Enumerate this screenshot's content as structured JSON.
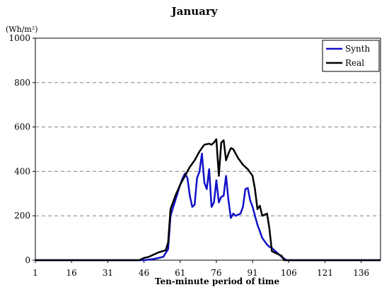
{
  "chart_data": {
    "type": "line",
    "title": "January",
    "ylabel": "(Wh/m²)",
    "xlabel": "Ten-minute period of time",
    "xlim": [
      1,
      144
    ],
    "ylim": [
      0,
      1000
    ],
    "xticks": [
      1,
      16,
      31,
      46,
      61,
      76,
      91,
      106,
      121,
      136
    ],
    "yticks": [
      0,
      200,
      400,
      600,
      800,
      1000
    ],
    "grid": "horizontal-dashed",
    "legend": "top-right",
    "series": [
      {
        "name": "Synth",
        "color": "#1010c8",
        "x": [
          1,
          46,
          50,
          54,
          56,
          57,
          59,
          61,
          62,
          63,
          64,
          65,
          66,
          67,
          68,
          69,
          70,
          71,
          72,
          73,
          74,
          75,
          76,
          77,
          78,
          79,
          80,
          81,
          82,
          83,
          84,
          85,
          86,
          87,
          88,
          89,
          90,
          91,
          92,
          93,
          94,
          95,
          96,
          97,
          98,
          99,
          100,
          101,
          102,
          103,
          104,
          105,
          144
        ],
        "y": [
          0,
          0,
          5,
          15,
          50,
          200,
          270,
          340,
          370,
          390,
          370,
          290,
          240,
          250,
          370,
          400,
          480,
          350,
          320,
          410,
          240,
          260,
          360,
          260,
          285,
          290,
          380,
          270,
          190,
          210,
          200,
          205,
          210,
          240,
          320,
          325,
          270,
          240,
          200,
          160,
          130,
          100,
          85,
          70,
          60,
          55,
          45,
          35,
          25,
          15,
          8,
          0,
          0
        ]
      },
      {
        "name": "Real",
        "color": "#000000",
        "x": [
          1,
          44,
          46,
          48,
          50,
          52,
          55,
          56,
          57,
          59,
          61,
          63,
          65,
          67,
          69,
          71,
          73,
          74,
          75,
          76,
          77,
          78,
          79,
          80,
          81,
          82,
          83,
          84,
          85,
          87,
          89,
          91,
          92,
          93,
          94,
          95,
          96,
          97,
          98,
          99,
          100,
          101,
          103,
          104,
          105,
          144
        ],
        "y": [
          0,
          0,
          10,
          15,
          25,
          35,
          45,
          80,
          230,
          290,
          340,
          380,
          420,
          450,
          490,
          520,
          525,
          520,
          530,
          545,
          380,
          530,
          540,
          450,
          480,
          505,
          500,
          480,
          460,
          430,
          410,
          380,
          320,
          230,
          245,
          200,
          205,
          210,
          140,
          40,
          35,
          30,
          20,
          0,
          0,
          0
        ]
      }
    ]
  }
}
